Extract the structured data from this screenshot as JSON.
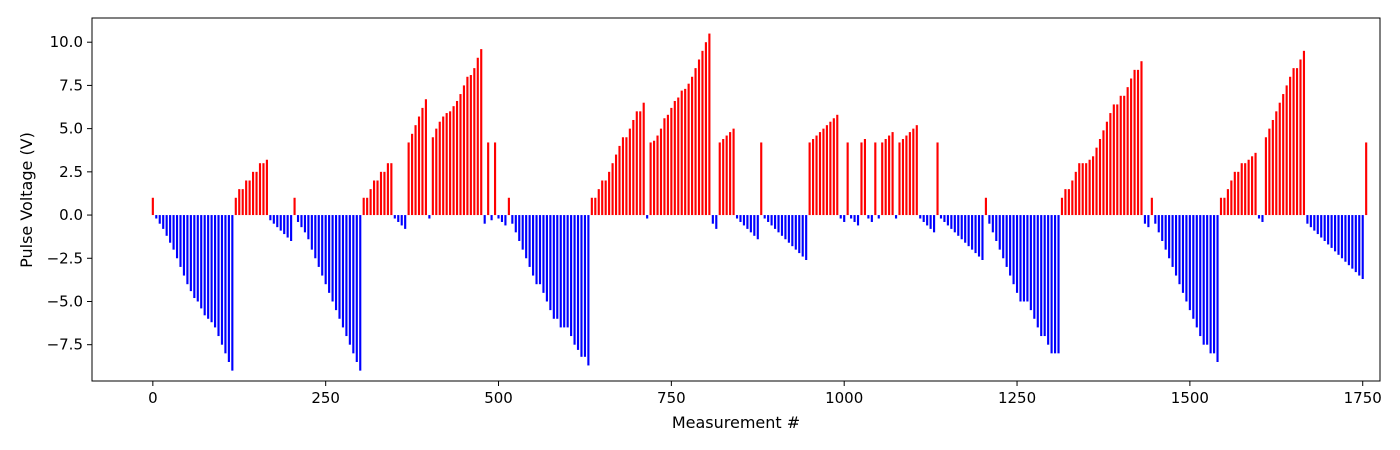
{
  "chart_data": {
    "type": "bar",
    "title": "",
    "xlabel": "Measurement #",
    "ylabel": "Pulse Voltage (V)",
    "xlim": [
      -88,
      1775
    ],
    "ylim": [
      -9.6,
      11.4
    ],
    "x_ticks": [
      0,
      250,
      500,
      750,
      1000,
      1250,
      1500,
      1750
    ],
    "x_tick_labels": [
      "0",
      "250",
      "500",
      "750",
      "1000",
      "1250",
      "1500",
      "1750"
    ],
    "y_ticks": [
      -7.5,
      -5.0,
      -2.5,
      0.0,
      2.5,
      5.0,
      7.5,
      10.0
    ],
    "y_tick_labels": [
      "−7.5",
      "−5.0",
      "−2.5",
      "0.0",
      "2.5",
      "5.0",
      "7.5",
      "10.0"
    ],
    "grid": false,
    "legend": "none",
    "colors": {
      "positive": "#ff0000",
      "negative": "#0000ff"
    },
    "bar_spacing": 5,
    "x_start": 0,
    "values": [
      1.0,
      -0.2,
      -0.5,
      -0.8,
      -1.2,
      -1.6,
      -2.0,
      -2.5,
      -3.0,
      -3.5,
      -4.0,
      -4.4,
      -4.8,
      -5.0,
      -5.4,
      -5.8,
      -6.0,
      -6.2,
      -6.5,
      -7.0,
      -7.5,
      -8.0,
      -8.5,
      -9.0,
      1.0,
      1.5,
      1.5,
      2.0,
      2.0,
      2.5,
      2.5,
      3.0,
      3.0,
      3.2,
      -0.3,
      -0.5,
      -0.7,
      -0.9,
      -1.1,
      -1.3,
      -1.5,
      1.0,
      -0.4,
      -0.7,
      -1.0,
      -1.4,
      -2.0,
      -2.5,
      -3.0,
      -3.5,
      -4.0,
      -4.5,
      -5.0,
      -5.5,
      -6.0,
      -6.5,
      -7.0,
      -7.5,
      -8.0,
      -8.5,
      -9.0,
      1.0,
      1.0,
      1.5,
      2.0,
      2.0,
      2.5,
      2.5,
      3.0,
      3.0,
      -0.2,
      -0.4,
      -0.6,
      -0.8,
      4.2,
      4.7,
      5.2,
      5.7,
      6.2,
      6.7,
      -0.2,
      4.5,
      5.0,
      5.4,
      5.7,
      5.9,
      6.0,
      6.3,
      6.6,
      7.0,
      7.5,
      8.0,
      8.1,
      8.5,
      9.1,
      9.6,
      -0.5,
      4.2,
      -0.3,
      4.2,
      -0.2,
      -0.4,
      -0.6,
      1.0,
      -0.5,
      -1.0,
      -1.5,
      -2.0,
      -2.5,
      -3.0,
      -3.5,
      -4.0,
      -4.0,
      -4.5,
      -5.0,
      -5.5,
      -6.0,
      -6.0,
      -6.5,
      -6.5,
      -6.5,
      -7.0,
      -7.5,
      -7.8,
      -8.2,
      -8.2,
      -8.7,
      1.0,
      1.0,
      1.5,
      2.0,
      2.0,
      2.5,
      3.0,
      3.5,
      4.0,
      4.5,
      4.5,
      5.0,
      5.5,
      6.0,
      6.0,
      6.5,
      -0.2,
      4.2,
      4.3,
      4.6,
      5.0,
      5.6,
      5.8,
      6.2,
      6.6,
      6.8,
      7.2,
      7.3,
      7.6,
      8.0,
      8.5,
      9.0,
      9.5,
      10.0,
      10.5,
      -0.5,
      -0.8,
      4.2,
      4.4,
      4.6,
      4.8,
      5.0,
      -0.2,
      -0.4,
      -0.6,
      -0.8,
      -1.0,
      -1.2,
      -1.4,
      4.2,
      -0.2,
      -0.4,
      -0.6,
      -0.8,
      -1.0,
      -1.2,
      -1.4,
      -1.6,
      -1.8,
      -2.0,
      -2.2,
      -2.4,
      -2.6,
      4.2,
      4.4,
      4.6,
      4.8,
      5.0,
      5.2,
      5.4,
      5.6,
      5.8,
      -0.2,
      -0.4,
      4.2,
      -0.2,
      -0.4,
      -0.6,
      4.2,
      4.4,
      -0.2,
      -0.4,
      4.2,
      -0.2,
      4.2,
      4.4,
      4.6,
      4.8,
      -0.2,
      4.2,
      4.4,
      4.6,
      4.8,
      5.0,
      5.2,
      -0.2,
      -0.4,
      -0.6,
      -0.8,
      -1.0,
      4.2,
      -0.2,
      -0.4,
      -0.6,
      -0.8,
      -1.0,
      -1.2,
      -1.4,
      -1.6,
      -1.8,
      -2.0,
      -2.2,
      -2.4,
      -2.6,
      1.0,
      -0.5,
      -1.0,
      -1.5,
      -2.0,
      -2.5,
      -3.0,
      -3.5,
      -4.0,
      -4.5,
      -5.0,
      -5.0,
      -5.0,
      -5.5,
      -6.0,
      -6.5,
      -7.0,
      -7.0,
      -7.5,
      -8.0,
      -8.0,
      -8.0,
      1.0,
      1.5,
      1.5,
      2.0,
      2.5,
      3.0,
      3.0,
      3.0,
      3.2,
      3.4,
      3.9,
      4.4,
      4.9,
      5.4,
      5.9,
      6.4,
      6.4,
      6.9,
      6.9,
      7.4,
      7.9,
      8.4,
      8.4,
      8.9,
      -0.5,
      -0.7,
      1.0,
      -0.5,
      -1.0,
      -1.5,
      -2.0,
      -2.5,
      -3.0,
      -3.5,
      -4.0,
      -4.5,
      -5.0,
      -5.5,
      -6.0,
      -6.5,
      -7.0,
      -7.5,
      -7.5,
      -8.0,
      -8.0,
      -8.5,
      1.0,
      1.0,
      1.5,
      2.0,
      2.5,
      2.5,
      3.0,
      3.0,
      3.2,
      3.4,
      3.6,
      -0.2,
      -0.4,
      4.5,
      5.0,
      5.5,
      6.0,
      6.5,
      7.0,
      7.5,
      8.0,
      8.5,
      8.5,
      9.0,
      9.5,
      -0.5,
      -0.7,
      -0.9,
      -1.1,
      -1.3,
      -1.5,
      -1.7,
      -1.9,
      -2.1,
      -2.3,
      -2.5,
      -2.7,
      -2.9,
      -3.1,
      -3.3,
      -3.5,
      -3.7,
      4.2
    ]
  }
}
